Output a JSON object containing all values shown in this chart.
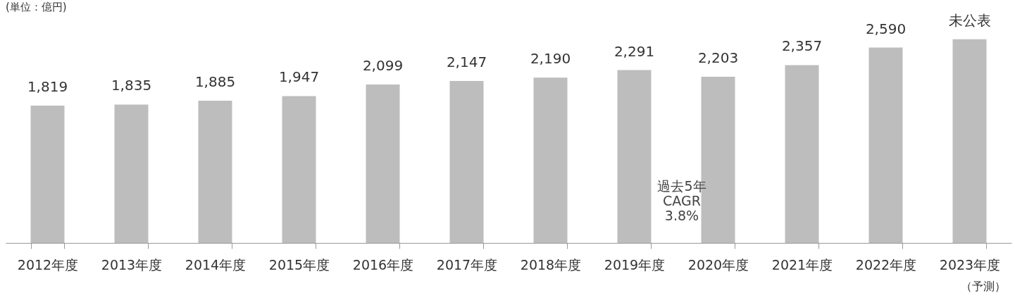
{
  "chart_data": {
    "type": "bar",
    "categories": [
      "2012年度",
      "2013年度",
      "2014年度",
      "2015年度",
      "2016年度",
      "2017年度",
      "2018年度",
      "2019年度",
      "2020年度",
      "2021年度",
      "2022年度",
      "2023年度"
    ],
    "values": [
      1819,
      1835,
      1885,
      1947,
      2099,
      2147,
      2190,
      2291,
      2203,
      2357,
      2590,
      2700
    ],
    "value_labels": [
      "1,819",
      "1,835",
      "1,885",
      "1,947",
      "2,099",
      "2,147",
      "2,190",
      "2,291",
      "2,203",
      "2,357",
      "2,590",
      "未公表"
    ],
    "color": "#bdbdbd",
    "tick_labels": "x",
    "grid": false,
    "annotations": [
      "(単位：億円)",
      "（予測）",
      "過去5年\nCAGR\n3.8%"
    ]
  }
}
